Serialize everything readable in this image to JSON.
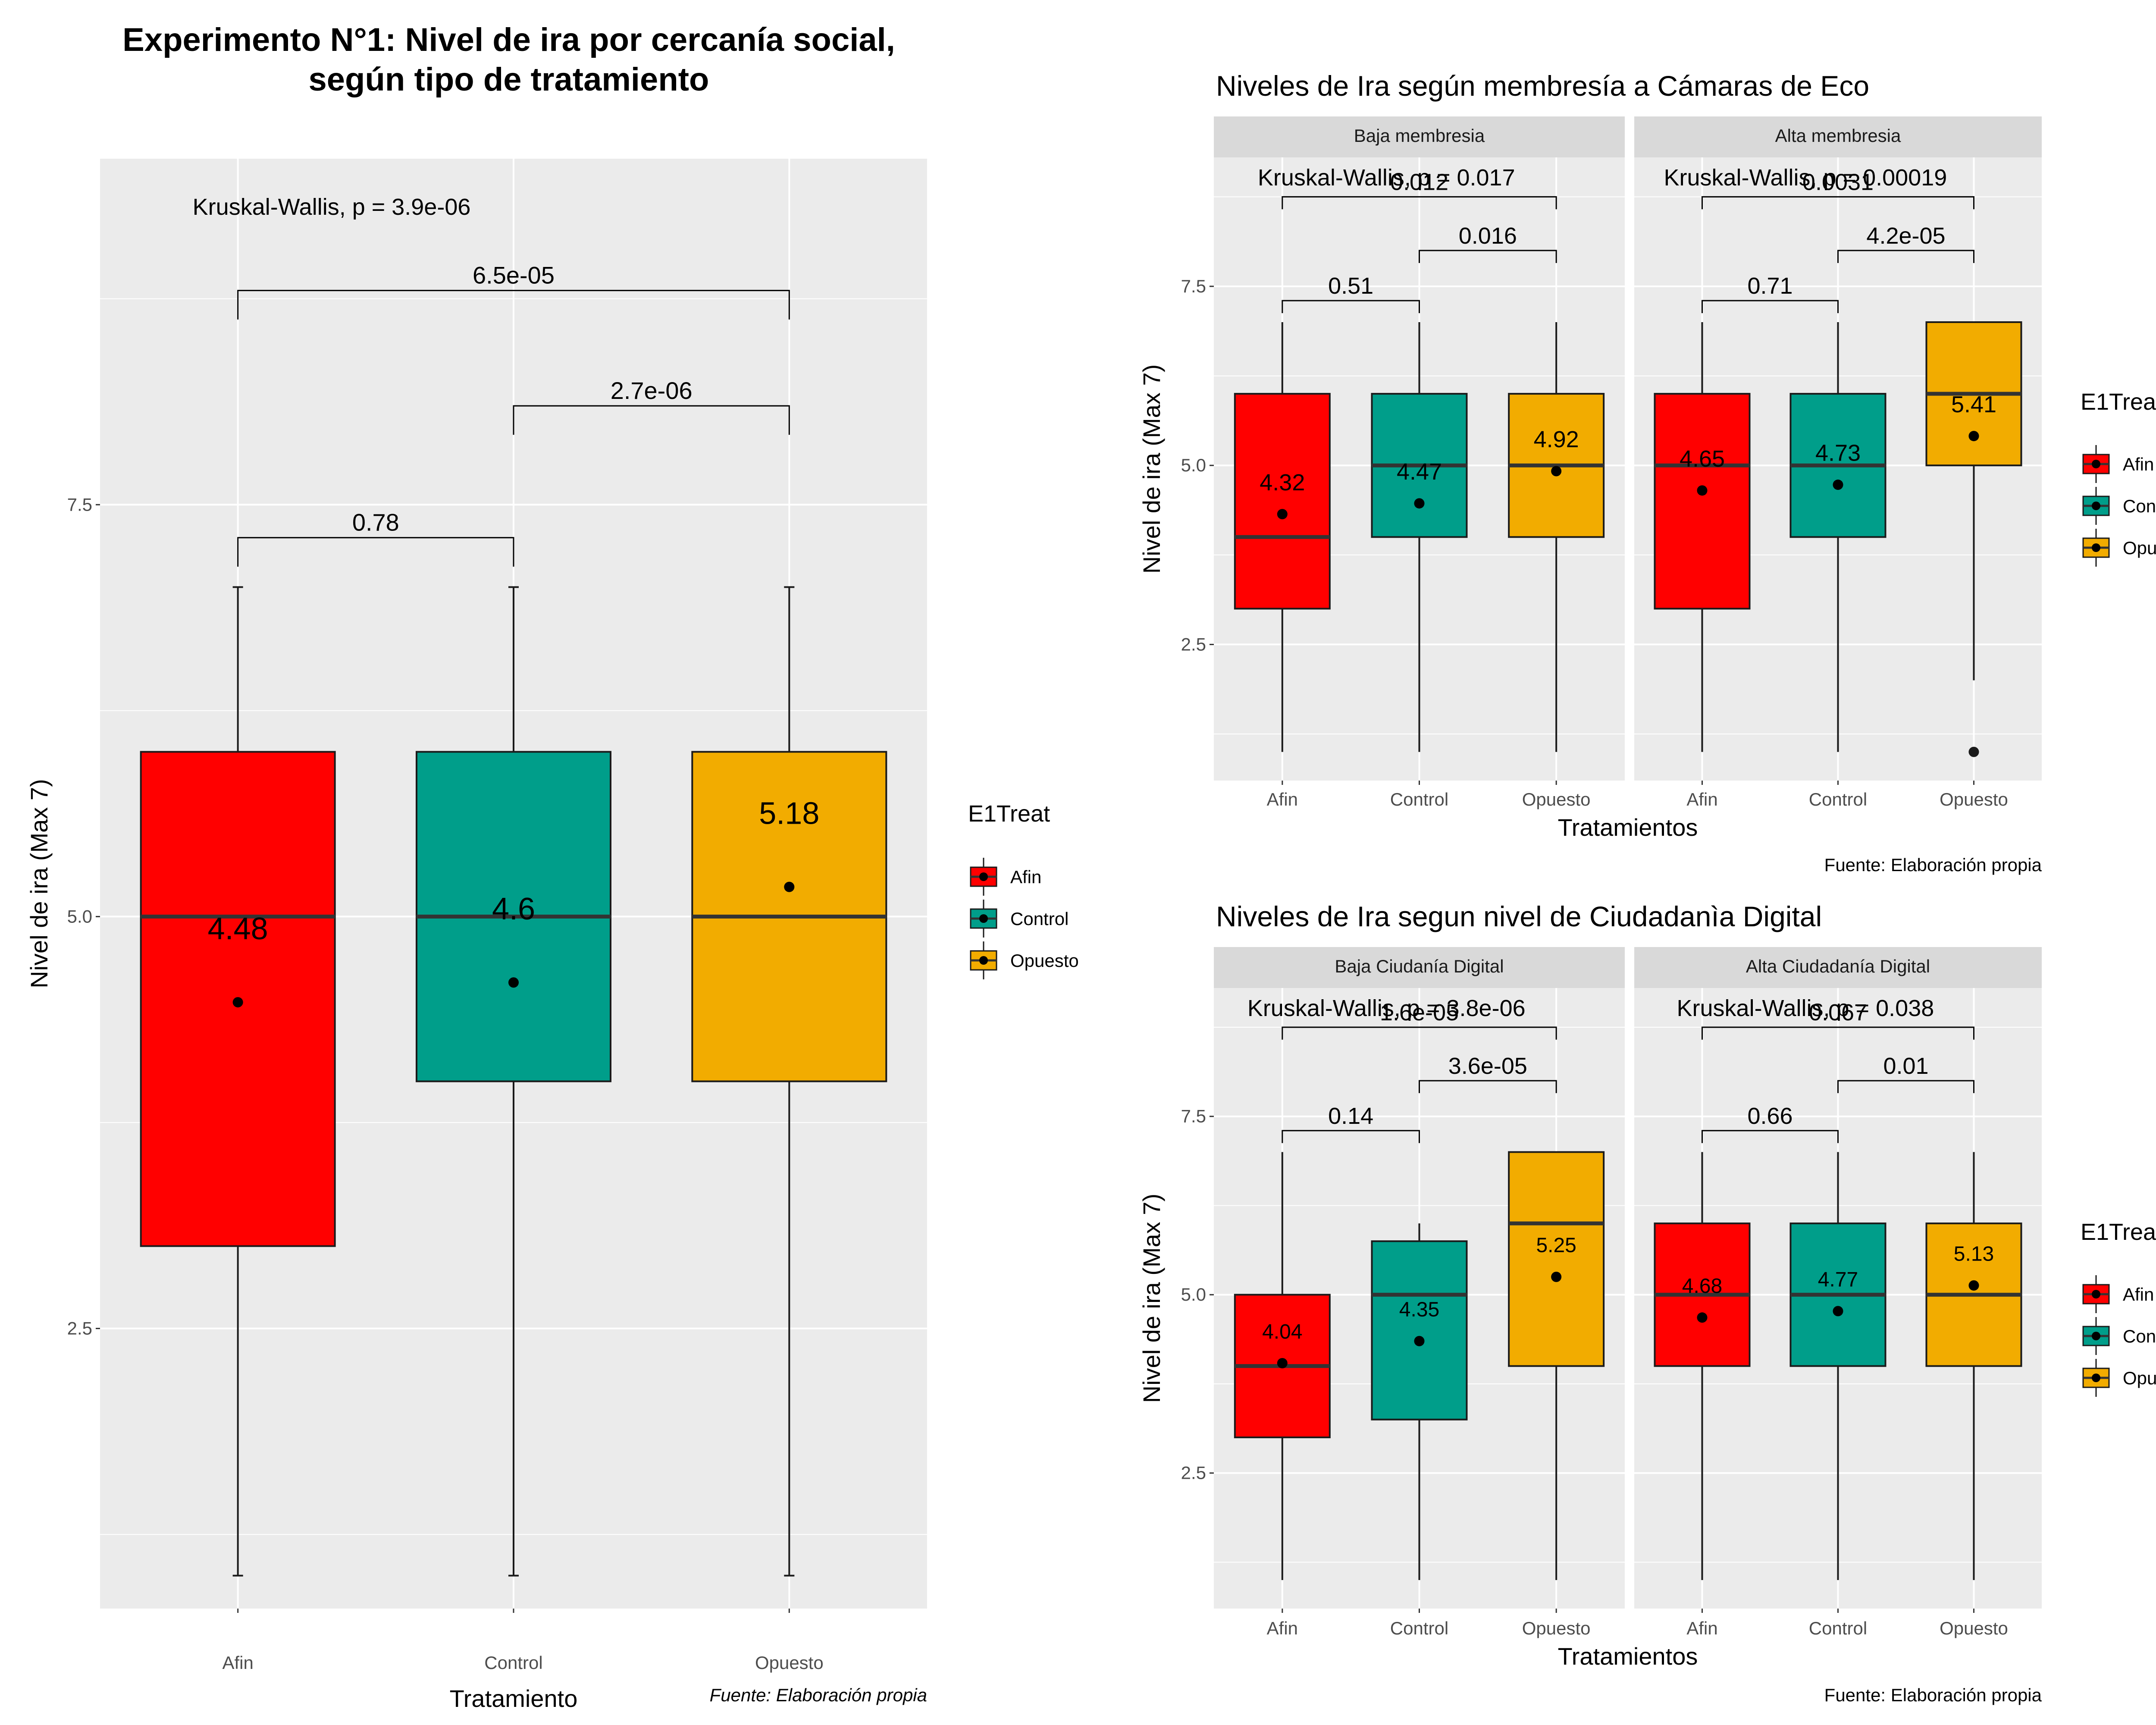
{
  "colors": {
    "Afin": "#FF0000",
    "Control": "#009E8A",
    "Opuesto": "#F2AC00",
    "panel_bg": "#EBEBEB",
    "strip_bg": "#D9D9D9",
    "grid": "#FFFFFF"
  },
  "chart_data": [
    {
      "id": "main",
      "type": "boxplot",
      "title": "Experimento N°1: Nivel de ira por cercanía social,",
      "title_line2": "según tipo de tratamiento",
      "xlabel": "Tratamiento",
      "ylabel": "Nivel de ira (Max 7)",
      "caption": "Fuente: Elaboración propia",
      "legend_title": "E1Treat",
      "legend_items": [
        "Afin",
        "Control",
        "Opuesto"
      ],
      "ylim": [
        0.8,
        9.6
      ],
      "yticks": [
        2.5,
        5.0,
        7.5
      ],
      "ytick_labels": [
        "2.5",
        "5.0",
        "7.5"
      ],
      "grid": true,
      "legend_position": "right",
      "panels": [
        {
          "strip": "",
          "kruskal": "Kruskal-Wallis, p = 3.9e-06",
          "categories": [
            "Afin",
            "Control",
            "Opuesto"
          ],
          "boxes": [
            {
              "min": 1,
              "q1": 3,
              "median": 5,
              "q3": 6,
              "max": 7,
              "mean": 4.48,
              "mean_label": "4.48",
              "outliers": []
            },
            {
              "min": 1,
              "q1": 4,
              "median": 5,
              "q3": 6,
              "max": 7,
              "mean": 4.6,
              "mean_label": "4.6",
              "outliers": []
            },
            {
              "min": 1,
              "q1": 4,
              "median": 5,
              "q3": 6,
              "max": 7,
              "mean": 5.18,
              "mean_label": "5.18",
              "outliers": []
            }
          ],
          "comparisons": [
            {
              "from": 0,
              "to": 1,
              "y": 7.3,
              "label": "0.78"
            },
            {
              "from": 1,
              "to": 2,
              "y": 8.1,
              "label": "2.7e-06"
            },
            {
              "from": 0,
              "to": 2,
              "y": 8.8,
              "label": "6.5e-05"
            }
          ]
        }
      ]
    },
    {
      "id": "membership",
      "type": "boxplot",
      "title": "Niveles de Ira según membresía a Cámaras de Eco",
      "xlabel": "Tratamientos",
      "ylabel": "Nivel de ira (Max 7)",
      "caption": "Fuente: Elaboración propia",
      "legend_title": "E1Treat",
      "legend_items": [
        "Afin",
        "Control",
        "Opuesto"
      ],
      "ylim": [
        0.6,
        9.3
      ],
      "yticks": [
        2.5,
        5.0,
        7.5
      ],
      "ytick_labels": [
        "2.5",
        "5.0",
        "7.5"
      ],
      "grid": true,
      "legend_position": "right",
      "panels": [
        {
          "strip": "Baja membresia",
          "kruskal": "Kruskal-Wallis, p = 0.017",
          "categories": [
            "Afin",
            "Control",
            "Opuesto"
          ],
          "boxes": [
            {
              "min": 1,
              "q1": 3,
              "median": 4,
              "q3": 6,
              "max": 7,
              "mean": 4.32,
              "mean_label": "4.32",
              "outliers": []
            },
            {
              "min": 1,
              "q1": 4,
              "median": 5,
              "q3": 6,
              "max": 7,
              "mean": 4.47,
              "mean_label": "4.47",
              "outliers": []
            },
            {
              "min": 1,
              "q1": 4,
              "median": 5,
              "q3": 6,
              "max": 7,
              "mean": 4.92,
              "mean_label": "4.92",
              "outliers": []
            }
          ],
          "comparisons": [
            {
              "from": 0,
              "to": 1,
              "y": 7.3,
              "label": "0.51"
            },
            {
              "from": 1,
              "to": 2,
              "y": 8.0,
              "label": "0.016"
            },
            {
              "from": 0,
              "to": 2,
              "y": 8.75,
              "label": "0.012"
            }
          ]
        },
        {
          "strip": "Alta membresia",
          "kruskal": "Kruskal-Wallis, p = 0.00019",
          "categories": [
            "Afin",
            "Control",
            "Opuesto"
          ],
          "boxes": [
            {
              "min": 1,
              "q1": 3,
              "median": 5,
              "q3": 6,
              "max": 7,
              "mean": 4.65,
              "mean_label": "4.65",
              "outliers": []
            },
            {
              "min": 1,
              "q1": 4,
              "median": 5,
              "q3": 6,
              "max": 7,
              "mean": 4.73,
              "mean_label": "4.73",
              "outliers": []
            },
            {
              "min": 2,
              "q1": 5,
              "median": 6,
              "q3": 7,
              "max": 7,
              "mean": 5.41,
              "mean_label": "5.41",
              "outliers": [
                1
              ]
            }
          ],
          "comparisons": [
            {
              "from": 0,
              "to": 1,
              "y": 7.3,
              "label": "0.71"
            },
            {
              "from": 1,
              "to": 2,
              "y": 8.0,
              "label": "4.2e-05"
            },
            {
              "from": 0,
              "to": 2,
              "y": 8.75,
              "label": "0.0031"
            }
          ]
        }
      ]
    },
    {
      "id": "ciudadania",
      "type": "boxplot",
      "title": "Niveles de Ira segun nivel de Ciudadanìa Digital",
      "xlabel": "Tratamientos",
      "ylabel": "Nivel de ira (Max 7)",
      "caption": "Fuente: Elaboración propia",
      "legend_title": "E1Treat",
      "legend_items": [
        "Afin",
        "Control",
        "Opuesto"
      ],
      "ylim": [
        0.6,
        9.3
      ],
      "yticks": [
        2.5,
        5.0,
        7.5
      ],
      "ytick_labels": [
        "2.5",
        "5.0",
        "7.5"
      ],
      "grid": true,
      "legend_position": "right",
      "panels": [
        {
          "strip": "Baja Ciudanía Digital",
          "kruskal": "Kruskal-Wallis, p = 3.8e-06",
          "categories": [
            "Afin",
            "Control",
            "Opuesto"
          ],
          "boxes": [
            {
              "min": 1,
              "q1": 3,
              "median": 4,
              "q3": 5,
              "max": 7,
              "mean": 4.04,
              "mean_label": "4.04",
              "outliers": []
            },
            {
              "min": 1,
              "q1": 3.25,
              "median": 5,
              "q3": 5.75,
              "max": 6,
              "mean": 4.35,
              "mean_label": "4.35",
              "outliers": []
            },
            {
              "min": 1,
              "q1": 4,
              "median": 6,
              "q3": 7,
              "max": 7,
              "mean": 5.25,
              "mean_label": "5.25",
              "outliers": []
            }
          ],
          "comparisons": [
            {
              "from": 0,
              "to": 1,
              "y": 7.3,
              "label": "0.14"
            },
            {
              "from": 1,
              "to": 2,
              "y": 8.0,
              "label": "3.6e-05"
            },
            {
              "from": 0,
              "to": 2,
              "y": 8.75,
              "label": "1.6e-05"
            }
          ]
        },
        {
          "strip": "Alta Ciudadanía Digital",
          "kruskal": "Kruskal-Wallis, p = 0.038",
          "categories": [
            "Afin",
            "Control",
            "Opuesto"
          ],
          "boxes": [
            {
              "min": 1,
              "q1": 4,
              "median": 5,
              "q3": 6,
              "max": 7,
              "mean": 4.68,
              "mean_label": "4.68",
              "outliers": []
            },
            {
              "min": 1,
              "q1": 4,
              "median": 5,
              "q3": 6,
              "max": 7,
              "mean": 4.77,
              "mean_label": "4.77",
              "outliers": []
            },
            {
              "min": 1,
              "q1": 4,
              "median": 5,
              "q3": 6,
              "max": 7,
              "mean": 5.13,
              "mean_label": "5.13",
              "outliers": []
            }
          ],
          "comparisons": [
            {
              "from": 0,
              "to": 1,
              "y": 7.3,
              "label": "0.66"
            },
            {
              "from": 1,
              "to": 2,
              "y": 8.0,
              "label": "0.01"
            },
            {
              "from": 0,
              "to": 2,
              "y": 8.75,
              "label": "0.067"
            }
          ]
        }
      ]
    }
  ]
}
